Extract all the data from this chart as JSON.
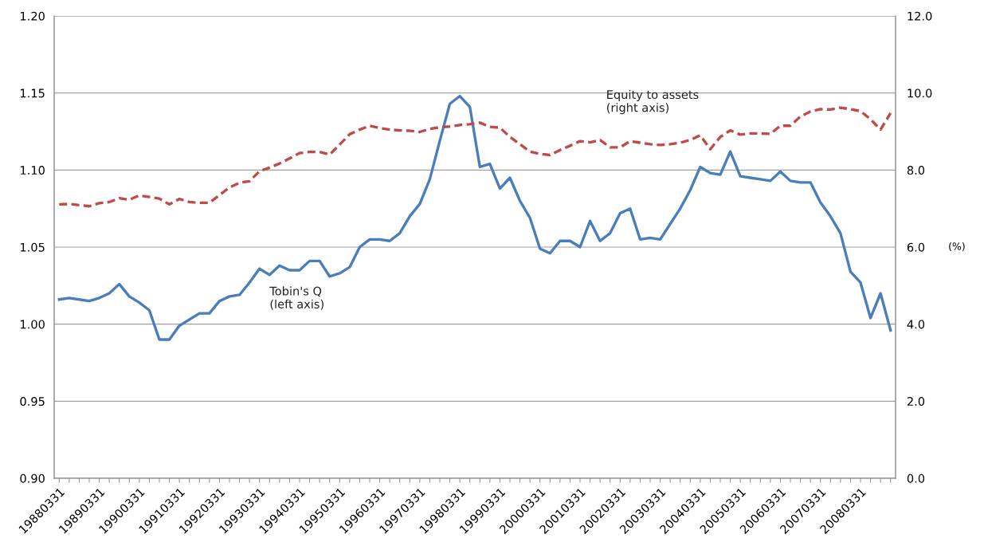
{
  "chart_data": {
    "type": "line",
    "categories": [
      "19880331",
      null,
      null,
      null,
      "19890331",
      null,
      null,
      null,
      "19900331",
      null,
      null,
      null,
      "19910331",
      null,
      null,
      null,
      "19920331",
      null,
      null,
      null,
      "19930331",
      null,
      null,
      null,
      "19940331",
      null,
      null,
      null,
      "19950331",
      null,
      null,
      null,
      "19960331",
      null,
      null,
      null,
      "19970331",
      null,
      null,
      null,
      "19980331",
      null,
      null,
      null,
      "19990331",
      null,
      null,
      null,
      "20000331",
      null,
      null,
      null,
      "20010331",
      null,
      null,
      null,
      "20020331",
      null,
      null,
      null,
      "20030331",
      null,
      null,
      null,
      "20040331",
      null,
      null,
      null,
      "20050331",
      null,
      null,
      null,
      "20060331",
      null,
      null,
      null,
      "20070331",
      null,
      null,
      null,
      "20080331",
      null,
      null,
      null
    ],
    "series": [
      {
        "name": "Tobin's Q\n(left axis)",
        "color": "#4a7ebb",
        "line_style": "solid",
        "values": [
          1.016,
          1.017,
          1.016,
          1.015,
          1.017,
          1.02,
          1.026,
          1.018,
          1.014,
          1.009,
          0.99,
          0.99,
          0.999,
          1.003,
          1.007,
          1.007,
          1.015,
          1.018,
          1.019,
          1.027,
          1.036,
          1.032,
          1.038,
          1.035,
          1.035,
          1.041,
          1.041,
          1.031,
          1.033,
          1.037,
          1.05,
          1.055,
          1.055,
          1.054,
          1.059,
          1.07,
          1.078,
          1.094,
          1.119,
          1.143,
          1.148,
          1.141,
          1.102,
          1.104,
          1.088,
          1.095,
          1.08,
          1.069,
          1.049,
          1.046,
          1.054,
          1.054,
          1.05,
          1.067,
          1.054,
          1.059,
          1.072,
          1.075,
          1.055,
          1.056,
          1.055,
          1.065,
          1.075,
          1.087,
          1.102,
          1.098,
          1.097,
          1.112,
          1.096,
          1.095,
          1.094,
          1.093,
          1.099,
          1.093,
          1.092,
          1.092,
          1.079,
          1.07,
          1.059,
          1.034,
          1.027,
          1.004,
          1.02,
          0.996
        ]
      },
      {
        "name": "Equity to assets\n(right axis)",
        "color": "#be4b48",
        "line_style": "dashed",
        "axis": "y2",
        "values": [
          7.11,
          7.12,
          7.09,
          7.06,
          7.14,
          7.17,
          7.27,
          7.23,
          7.34,
          7.3,
          7.26,
          7.11,
          7.25,
          7.17,
          7.15,
          7.15,
          7.35,
          7.55,
          7.67,
          7.71,
          7.97,
          8.06,
          8.17,
          8.3,
          8.44,
          8.47,
          8.47,
          8.4,
          8.66,
          8.93,
          9.05,
          9.15,
          9.09,
          9.05,
          9.03,
          9.02,
          8.99,
          9.07,
          9.11,
          9.13,
          9.17,
          9.19,
          9.23,
          9.12,
          9.1,
          8.86,
          8.67,
          8.48,
          8.42,
          8.39,
          8.52,
          8.63,
          8.75,
          8.72,
          8.78,
          8.59,
          8.59,
          8.75,
          8.71,
          8.67,
          8.65,
          8.67,
          8.71,
          8.78,
          8.9,
          8.54,
          8.86,
          9.03,
          8.92,
          8.95,
          8.95,
          8.94,
          9.15,
          9.15,
          9.39,
          9.52,
          9.58,
          9.57,
          9.62,
          9.58,
          9.53,
          9.32,
          9.05,
          9.48
        ]
      }
    ],
    "ylim": [
      0.9,
      1.2
    ],
    "yticks": [
      {
        "value": 0.9,
        "label": "0.90"
      },
      {
        "value": 0.95,
        "label": "0.95"
      },
      {
        "value": 1.0,
        "label": "1.00"
      },
      {
        "value": 1.05,
        "label": "1.05"
      },
      {
        "value": 1.1,
        "label": "1.10"
      },
      {
        "value": 1.15,
        "label": "1.15"
      },
      {
        "value": 1.2,
        "label": "1.20"
      }
    ],
    "y2lim": [
      0,
      12
    ],
    "y2ticks": [
      {
        "value": 0,
        "label": "0.0"
      },
      {
        "value": 2,
        "label": "2.0"
      },
      {
        "value": 4,
        "label": "4.0"
      },
      {
        "value": 6,
        "label": "6.0"
      },
      {
        "value": 8,
        "label": "8.0"
      },
      {
        "value": 10,
        "label": "10.0"
      },
      {
        "value": 12,
        "label": "12.0"
      }
    ],
    "y2label": "(%)",
    "grid": "y",
    "legend": false,
    "marker": "none"
  }
}
